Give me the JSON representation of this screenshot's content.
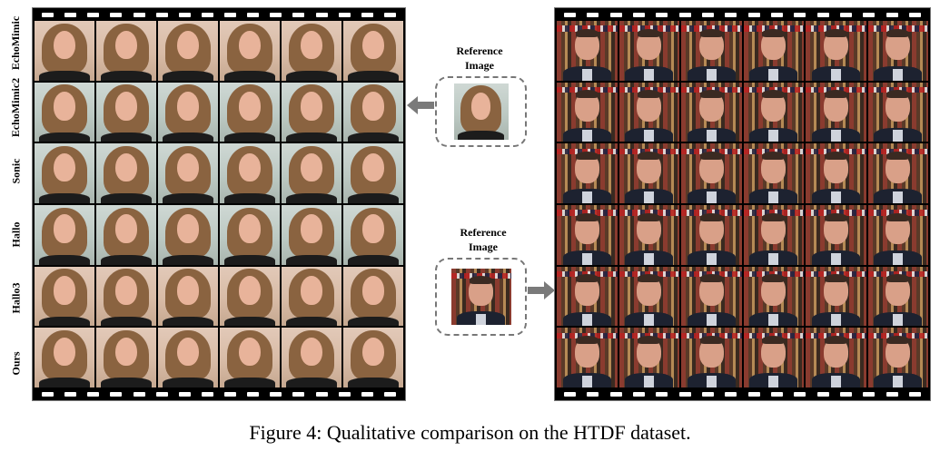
{
  "figure": {
    "caption": "Figure 4: Qualitative comparison on the HTDF dataset.",
    "row_labels": [
      "EchoMimic",
      "EchoMimic2",
      "Sonic",
      "Hallo",
      "Hallo3",
      "Ours"
    ],
    "columns_per_row": 6,
    "reference_left": {
      "title_line1": "Reference",
      "title_line2": "Image"
    },
    "reference_right": {
      "title_line1": "Reference",
      "title_line2": "Image"
    },
    "colors": {
      "arrow": "#7a7a7a",
      "dash_border": "#777777",
      "film": "#000000"
    }
  }
}
